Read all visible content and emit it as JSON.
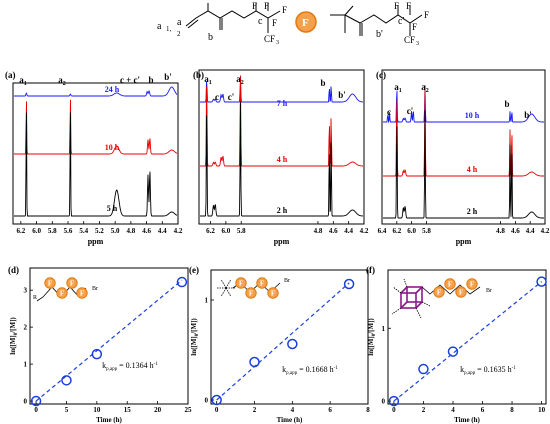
{
  "header": {
    "monomer_labels": [
      "a",
      "1,",
      "a",
      "2",
      "b",
      "c",
      "F",
      "F",
      "F",
      "F",
      "CF",
      "3"
    ],
    "polymer_labels": [
      "F",
      "F",
      "F",
      "F",
      "CF",
      "3",
      "b'",
      "c'"
    ],
    "legend_f": "F"
  },
  "colors": {
    "24h": "#1a1aff",
    "10h": "#e60000",
    "5h": "#000000",
    "7h": "#1a1aff",
    "4h": "#e60000",
    "2h": "#000000",
    "orange": "#f5a04a",
    "orange_stroke": "#e07a10",
    "kinetic_blue": "#1a3fe0",
    "cube": "#8a1a8a"
  },
  "chart_data": [
    {
      "panel": "(a)",
      "type": "line",
      "xlabel": "ppm",
      "xlim": [
        6.3,
        4.2
      ],
      "ticks": [
        "6.2",
        "6.0",
        "5.8",
        "5.6",
        "5.4",
        "5.2",
        "5.0",
        "4.8",
        "4.6",
        "4.4",
        "4.2"
      ],
      "series": [
        {
          "name": "24 h",
          "color": "24h"
        },
        {
          "name": "10 h",
          "color": "10h"
        },
        {
          "name": "5 h",
          "color": "5h"
        }
      ],
      "peak_labels": [
        "a1",
        "a2",
        "c + c'",
        "b",
        "b'"
      ]
    },
    {
      "panel": "(b)",
      "type": "line",
      "xlabel": "ppm",
      "xlim": [
        6.35,
        4.2
      ],
      "ticks": [
        "6.2",
        "6.0",
        "5.8",
        "4.8",
        "4.6",
        "4.4",
        "4.2"
      ],
      "series": [
        {
          "name": "7 h",
          "color": "7h"
        },
        {
          "name": "4 h",
          "color": "4h"
        },
        {
          "name": "2 h",
          "color": "2h"
        }
      ],
      "peak_labels": [
        "a1",
        "c",
        "c'",
        "a2",
        "b",
        "b'"
      ]
    },
    {
      "panel": "(c)",
      "type": "line",
      "xlabel": "ppm",
      "xlim": [
        6.4,
        4.2
      ],
      "ticks": [
        "6.4",
        "6.2",
        "6.0",
        "5.8",
        "4.8",
        "4.6",
        "4.4",
        "4.2"
      ],
      "series": [
        {
          "name": "10 h",
          "color": "7h"
        },
        {
          "name": "4 h",
          "color": "4h"
        },
        {
          "name": "2 h",
          "color": "2h"
        }
      ],
      "peak_labels": [
        "c",
        "a1",
        "c'",
        "a2",
        "b",
        "b'"
      ]
    },
    {
      "panel": "(d)",
      "type": "scatter",
      "xlabel": "Time (h)",
      "ylabel": "ln([M]0/[M])",
      "xlim": [
        -1,
        25
      ],
      "ylim": [
        -0.08,
        3.6
      ],
      "xticks": [
        0,
        5,
        10,
        15,
        20,
        25
      ],
      "yticks": [
        0,
        1,
        2,
        3
      ],
      "x": [
        0,
        5,
        10,
        24
      ],
      "y": [
        0,
        0.56,
        1.27,
        3.22
      ],
      "fit": [
        [
          0,
          0
        ],
        [
          24,
          3.27
        ]
      ],
      "kapp_label": "k",
      "kapp_sub": "p,app",
      "kapp_value": " = 0.1364 h",
      "kapp_sup": "-1"
    },
    {
      "panel": "(e)",
      "type": "scatter",
      "xlabel": "Time (h)",
      "ylabel": "ln([M]0/[M])",
      "xlim": [
        -0.3,
        8
      ],
      "ylim": [
        -0.04,
        1.3
      ],
      "xticks": [
        0,
        2,
        4,
        6,
        8
      ],
      "yticks": [
        0,
        1
      ],
      "x": [
        0,
        2,
        4,
        7
      ],
      "y": [
        0,
        0.38,
        0.56,
        1.16
      ],
      "fit": [
        [
          0,
          0
        ],
        [
          7,
          1.17
        ]
      ],
      "kapp_label": "k",
      "kapp_sub": "p,app",
      "kapp_value": " = 0.1668 h",
      "kapp_sup": "-1"
    },
    {
      "panel": "(f)",
      "type": "scatter",
      "xlabel": "Time (h)",
      "ylabel": "ln([M]0/[M])",
      "xlim": [
        -0.4,
        10.3
      ],
      "ylim": [
        -0.04,
        1.8
      ],
      "xticks": [
        0,
        2,
        4,
        6,
        8,
        10
      ],
      "yticks": [
        0,
        1
      ],
      "x": [
        0,
        2,
        4,
        10
      ],
      "y": [
        0,
        0.44,
        0.68,
        1.64
      ],
      "fit": [
        [
          0,
          0
        ],
        [
          10,
          1.64
        ]
      ],
      "kapp_label": "k",
      "kapp_sub": "p,app",
      "kapp_value": " = 0.1635 h",
      "kapp_sup": "-1"
    }
  ],
  "ylabel_parts": [
    "ln([M]",
    "0",
    "/[M])"
  ],
  "tag_text_br": "Br",
  "tag_text_r": "R",
  "f_letter": "F"
}
